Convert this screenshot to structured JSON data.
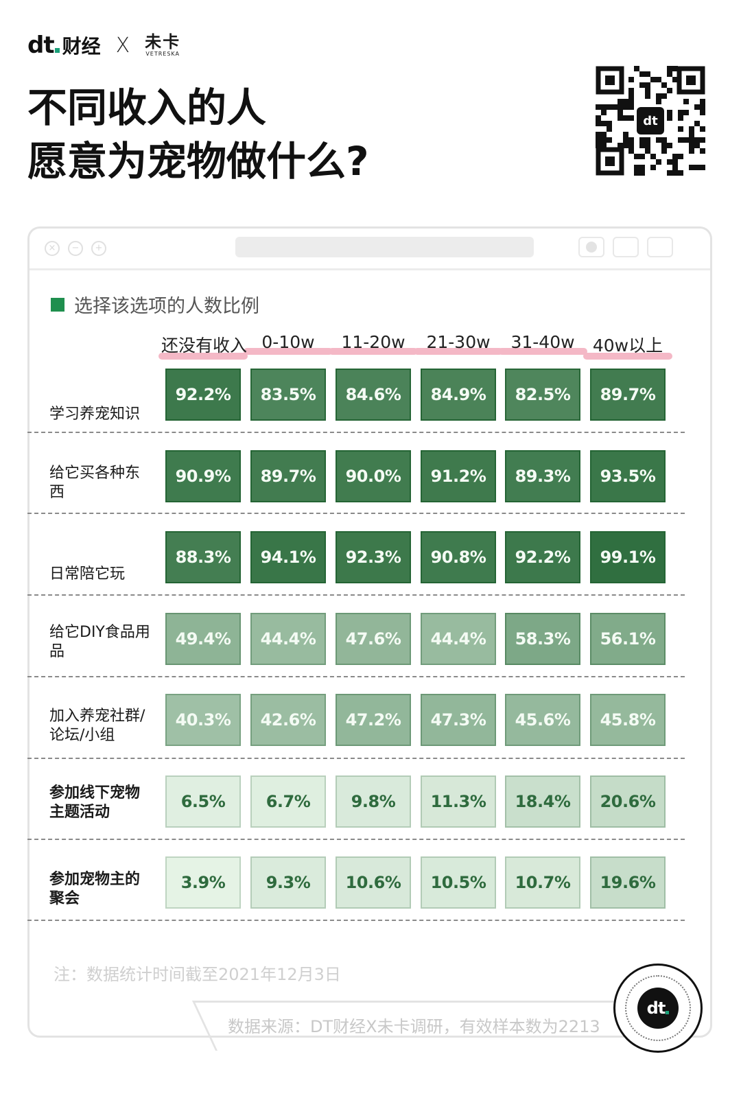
{
  "brand": {
    "logo_text": "dt",
    "name": "财经",
    "x": "X",
    "partner_cn": "未卡",
    "partner_en": "VETRESKA"
  },
  "title": {
    "line1": "不同收入的人",
    "line2": "愿意为宠物做什么?"
  },
  "legend": {
    "label": "选择该选项的人数比例",
    "color": "#1f8f4e"
  },
  "chart_data": {
    "type": "table",
    "title": "不同收入的人愿意为宠物做什么?",
    "legend": "选择该选项的人数比例",
    "columns": [
      "还没有收入",
      "0-10w",
      "11-20w",
      "21-30w",
      "31-40w",
      "40w以上"
    ],
    "rows": [
      {
        "label": "学习养宠知识",
        "bold": false,
        "values": [
          92.2,
          83.5,
          84.6,
          84.9,
          82.5,
          89.7
        ],
        "display": [
          "92.2%",
          "83.5%",
          "84.6%",
          "84.9%",
          "82.5%",
          "89.7%"
        ]
      },
      {
        "label": "给它买各种东西",
        "bold": false,
        "values": [
          90.9,
          89.7,
          90.0,
          91.2,
          89.3,
          93.5
        ],
        "display": [
          "90.9%",
          "89.7%",
          "90.0%",
          "91.2%",
          "89.3%",
          "93.5%"
        ]
      },
      {
        "label": "日常陪它玩",
        "bold": false,
        "values": [
          88.3,
          94.1,
          92.3,
          90.8,
          92.2,
          99.1
        ],
        "display": [
          "88.3%",
          "94.1%",
          "92.3%",
          "90.8%",
          "92.2%",
          "99.1%"
        ]
      },
      {
        "label": "给它DIY食品用品",
        "bold": false,
        "values": [
          49.4,
          44.4,
          47.6,
          44.4,
          58.3,
          56.1
        ],
        "display": [
          "49.4%",
          "44.4%",
          "47.6%",
          "44.4%",
          "58.3%",
          "56.1%"
        ]
      },
      {
        "label": "加入养宠社群/论坛/小组",
        "bold": false,
        "values": [
          40.3,
          42.6,
          47.2,
          47.3,
          45.6,
          45.8
        ],
        "display": [
          "40.3%",
          "42.6%",
          "47.2%",
          "47.3%",
          "45.6%",
          "45.8%"
        ]
      },
      {
        "label": "参加线下宠物主题活动",
        "bold": true,
        "values": [
          6.5,
          6.7,
          9.8,
          11.3,
          18.4,
          20.6
        ],
        "display": [
          "6.5%",
          "6.7%",
          "9.8%",
          "11.3%",
          "18.4%",
          "20.6%"
        ]
      },
      {
        "label": "参加宠物主的聚会",
        "bold": true,
        "values": [
          3.9,
          9.3,
          10.6,
          10.5,
          10.7,
          19.6
        ],
        "display": [
          "3.9%",
          "9.3%",
          "10.6%",
          "10.5%",
          "10.7%",
          "19.6%"
        ]
      }
    ]
  },
  "note": "注：数据统计时间截至2021年12月3日",
  "source": "数据来源：DT财经X未卡调研，有效样本数为2213"
}
